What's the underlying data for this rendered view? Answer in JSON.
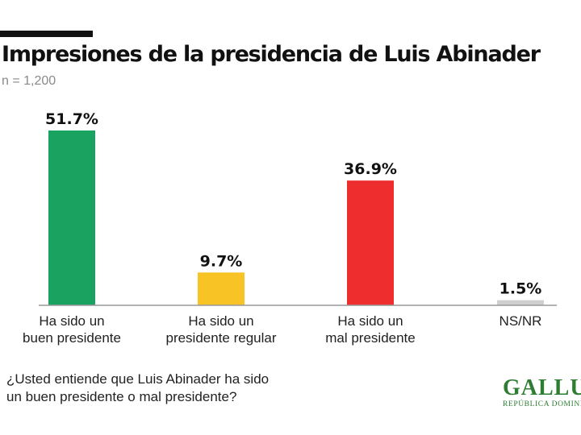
{
  "header": {
    "title": "Impresiones de la presidencia de Luis Abinader",
    "sample": "n = 1,200"
  },
  "question": "¿Usted entiende que Luis Abinader ha sido\nun buen presidente o mal presidente?",
  "brand": {
    "name": "GALLUP",
    "subtitle": "REPÚBLICA DOMINICANA"
  },
  "colors": {
    "green": "#1aa260",
    "yellow": "#f7c325",
    "red": "#ee2e2e",
    "gray": "#cfcfcf",
    "axis": "#9a9a9a",
    "brand": "#2e7d32"
  },
  "chart_data": {
    "type": "bar",
    "categories": [
      [
        "Ha sido un",
        "buen presidente"
      ],
      [
        "Ha sido un",
        "presidente regular"
      ],
      [
        "Ha sido un",
        "mal presidente"
      ],
      [
        "NS/NR"
      ]
    ],
    "values": [
      51.7,
      9.7,
      36.9,
      1.5
    ],
    "value_labels": [
      "51.7%",
      "9.7%",
      "36.9%",
      "1.5%"
    ],
    "bar_colors": [
      "#1aa260",
      "#f7c325",
      "#ee2e2e",
      "#cfcfcf"
    ],
    "title": "Impresiones de la presidencia de Luis Abinader",
    "xlabel": "",
    "ylabel": "",
    "ylim": [
      0,
      51.7
    ],
    "grid": false,
    "legend": "none"
  }
}
